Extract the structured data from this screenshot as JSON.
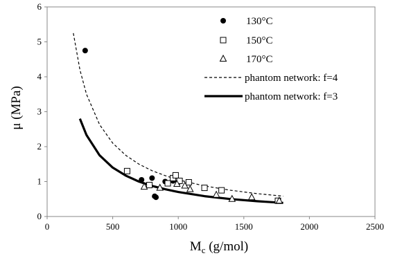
{
  "chart_data": {
    "type": "scatter",
    "title": "",
    "xlabel_main": "M",
    "xlabel_sub": "c",
    "xlabel_rest": " (g/mol)",
    "ylabel": "μ (MPa)",
    "xlim": [
      0,
      2500
    ],
    "ylim": [
      0,
      6
    ],
    "xticks": [
      0,
      500,
      1000,
      1500,
      2000,
      2500
    ],
    "yticks": [
      0,
      1,
      2,
      3,
      4,
      5,
      6
    ],
    "grid": false,
    "legend_position": "top-right",
    "series": [
      {
        "name": "130°C",
        "marker": "filled-circle",
        "points": [
          [
            290,
            4.75
          ],
          [
            720,
            1.05
          ],
          [
            800,
            1.1
          ],
          [
            820,
            0.58
          ],
          [
            830,
            0.55
          ],
          [
            900,
            1.0
          ],
          [
            960,
            1.02
          ],
          [
            1000,
            0.98
          ]
        ]
      },
      {
        "name": "150°C",
        "marker": "open-square",
        "points": [
          [
            610,
            1.3
          ],
          [
            780,
            0.9
          ],
          [
            920,
            0.95
          ],
          [
            960,
            1.1
          ],
          [
            980,
            1.18
          ],
          [
            1010,
            1.02
          ],
          [
            1080,
            0.98
          ],
          [
            1200,
            0.82
          ],
          [
            1330,
            0.75
          ],
          [
            1760,
            0.45
          ]
        ]
      },
      {
        "name": "170°C",
        "marker": "open-triangle",
        "points": [
          [
            740,
            0.85
          ],
          [
            860,
            0.82
          ],
          [
            990,
            0.93
          ],
          [
            1050,
            0.88
          ],
          [
            1090,
            0.78
          ],
          [
            1290,
            0.62
          ],
          [
            1410,
            0.5
          ],
          [
            1560,
            0.55
          ],
          [
            1770,
            0.45
          ]
        ]
      },
      {
        "name": "phantom network: f=4",
        "style": "dashed-line",
        "x": [
          200,
          250,
          300,
          400,
          500,
          600,
          700,
          800,
          900,
          1000,
          1200,
          1400,
          1600,
          1800
        ],
        "y": [
          5.25,
          4.2,
          3.5,
          2.63,
          2.1,
          1.75,
          1.5,
          1.31,
          1.17,
          1.05,
          0.875,
          0.75,
          0.656,
          0.583
        ]
      },
      {
        "name": "phantom network: f=3",
        "style": "solid-line",
        "x": [
          250,
          300,
          400,
          500,
          600,
          700,
          800,
          900,
          1000,
          1200,
          1400,
          1600,
          1800
        ],
        "y": [
          2.8,
          2.33,
          1.75,
          1.4,
          1.17,
          1.0,
          0.875,
          0.78,
          0.7,
          0.583,
          0.5,
          0.4375,
          0.39
        ]
      }
    ]
  }
}
